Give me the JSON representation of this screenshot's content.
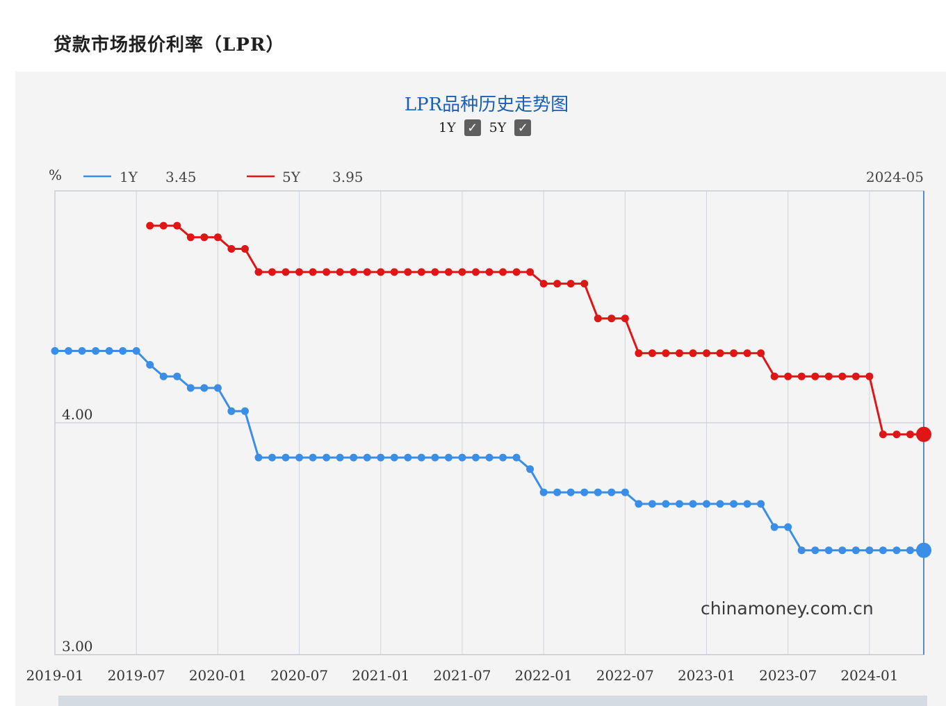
{
  "page": {
    "title": "贷款市场报价利率（LPR）"
  },
  "controls": {
    "toggles": [
      {
        "label": "1Y",
        "checked": true
      },
      {
        "label": "5Y",
        "checked": true
      }
    ]
  },
  "watermark": "chinamoney.com.cn",
  "chart_data": {
    "type": "line",
    "title": "LPR品种历史走势图",
    "ylabel": "%",
    "ylim": [
      3.0,
      5.0
    ],
    "y_ticks": [
      "3.00",
      "4.00"
    ],
    "x_ticks": [
      "2019-01",
      "2019-07",
      "2020-01",
      "2020-07",
      "2021-01",
      "2021-07",
      "2022-01",
      "2022-07",
      "2023-01",
      "2023-07",
      "2024-01"
    ],
    "x_start": "2019-01",
    "x_end": "2024-05",
    "crosshair_label": "2024-05",
    "grid": true,
    "legend": "top-left",
    "series": [
      {
        "name": "1Y",
        "color": "#3a8ee6",
        "current_value": "3.45",
        "points": [
          [
            "2019-01",
            4.31
          ],
          [
            "2019-02",
            4.31
          ],
          [
            "2019-03",
            4.31
          ],
          [
            "2019-04",
            4.31
          ],
          [
            "2019-05",
            4.31
          ],
          [
            "2019-06",
            4.31
          ],
          [
            "2019-07",
            4.31
          ],
          [
            "2019-08",
            4.25
          ],
          [
            "2019-09",
            4.2
          ],
          [
            "2019-10",
            4.2
          ],
          [
            "2019-11",
            4.15
          ],
          [
            "2019-12",
            4.15
          ],
          [
            "2020-01",
            4.15
          ],
          [
            "2020-02",
            4.05
          ],
          [
            "2020-03",
            4.05
          ],
          [
            "2020-04",
            3.85
          ],
          [
            "2020-05",
            3.85
          ],
          [
            "2020-06",
            3.85
          ],
          [
            "2020-07",
            3.85
          ],
          [
            "2020-08",
            3.85
          ],
          [
            "2020-09",
            3.85
          ],
          [
            "2020-10",
            3.85
          ],
          [
            "2020-11",
            3.85
          ],
          [
            "2020-12",
            3.85
          ],
          [
            "2021-01",
            3.85
          ],
          [
            "2021-02",
            3.85
          ],
          [
            "2021-03",
            3.85
          ],
          [
            "2021-04",
            3.85
          ],
          [
            "2021-05",
            3.85
          ],
          [
            "2021-06",
            3.85
          ],
          [
            "2021-07",
            3.85
          ],
          [
            "2021-08",
            3.85
          ],
          [
            "2021-09",
            3.85
          ],
          [
            "2021-10",
            3.85
          ],
          [
            "2021-11",
            3.85
          ],
          [
            "2021-12",
            3.8
          ],
          [
            "2022-01",
            3.7
          ],
          [
            "2022-02",
            3.7
          ],
          [
            "2022-03",
            3.7
          ],
          [
            "2022-04",
            3.7
          ],
          [
            "2022-05",
            3.7
          ],
          [
            "2022-06",
            3.7
          ],
          [
            "2022-07",
            3.7
          ],
          [
            "2022-08",
            3.65
          ],
          [
            "2022-09",
            3.65
          ],
          [
            "2022-10",
            3.65
          ],
          [
            "2022-11",
            3.65
          ],
          [
            "2022-12",
            3.65
          ],
          [
            "2023-01",
            3.65
          ],
          [
            "2023-02",
            3.65
          ],
          [
            "2023-03",
            3.65
          ],
          [
            "2023-04",
            3.65
          ],
          [
            "2023-05",
            3.65
          ],
          [
            "2023-06",
            3.55
          ],
          [
            "2023-07",
            3.55
          ],
          [
            "2023-08",
            3.45
          ],
          [
            "2023-09",
            3.45
          ],
          [
            "2023-10",
            3.45
          ],
          [
            "2023-11",
            3.45
          ],
          [
            "2023-12",
            3.45
          ],
          [
            "2024-01",
            3.45
          ],
          [
            "2024-02",
            3.45
          ],
          [
            "2024-03",
            3.45
          ],
          [
            "2024-04",
            3.45
          ],
          [
            "2024-05",
            3.45
          ]
        ]
      },
      {
        "name": "5Y",
        "color": "#e01515",
        "current_value": "3.95",
        "points": [
          [
            "2019-08",
            4.85
          ],
          [
            "2019-09",
            4.85
          ],
          [
            "2019-10",
            4.85
          ],
          [
            "2019-11",
            4.8
          ],
          [
            "2019-12",
            4.8
          ],
          [
            "2020-01",
            4.8
          ],
          [
            "2020-02",
            4.75
          ],
          [
            "2020-03",
            4.75
          ],
          [
            "2020-04",
            4.65
          ],
          [
            "2020-05",
            4.65
          ],
          [
            "2020-06",
            4.65
          ],
          [
            "2020-07",
            4.65
          ],
          [
            "2020-08",
            4.65
          ],
          [
            "2020-09",
            4.65
          ],
          [
            "2020-10",
            4.65
          ],
          [
            "2020-11",
            4.65
          ],
          [
            "2020-12",
            4.65
          ],
          [
            "2021-01",
            4.65
          ],
          [
            "2021-02",
            4.65
          ],
          [
            "2021-03",
            4.65
          ],
          [
            "2021-04",
            4.65
          ],
          [
            "2021-05",
            4.65
          ],
          [
            "2021-06",
            4.65
          ],
          [
            "2021-07",
            4.65
          ],
          [
            "2021-08",
            4.65
          ],
          [
            "2021-09",
            4.65
          ],
          [
            "2021-10",
            4.65
          ],
          [
            "2021-11",
            4.65
          ],
          [
            "2021-12",
            4.65
          ],
          [
            "2022-01",
            4.6
          ],
          [
            "2022-02",
            4.6
          ],
          [
            "2022-03",
            4.6
          ],
          [
            "2022-04",
            4.6
          ],
          [
            "2022-05",
            4.45
          ],
          [
            "2022-06",
            4.45
          ],
          [
            "2022-07",
            4.45
          ],
          [
            "2022-08",
            4.3
          ],
          [
            "2022-09",
            4.3
          ],
          [
            "2022-10",
            4.3
          ],
          [
            "2022-11",
            4.3
          ],
          [
            "2022-12",
            4.3
          ],
          [
            "2023-01",
            4.3
          ],
          [
            "2023-02",
            4.3
          ],
          [
            "2023-03",
            4.3
          ],
          [
            "2023-04",
            4.3
          ],
          [
            "2023-05",
            4.3
          ],
          [
            "2023-06",
            4.2
          ],
          [
            "2023-07",
            4.2
          ],
          [
            "2023-08",
            4.2
          ],
          [
            "2023-09",
            4.2
          ],
          [
            "2023-10",
            4.2
          ],
          [
            "2023-11",
            4.2
          ],
          [
            "2023-12",
            4.2
          ],
          [
            "2024-01",
            4.2
          ],
          [
            "2024-02",
            3.95
          ],
          [
            "2024-03",
            3.95
          ],
          [
            "2024-04",
            3.95
          ],
          [
            "2024-05",
            3.95
          ]
        ]
      }
    ]
  }
}
